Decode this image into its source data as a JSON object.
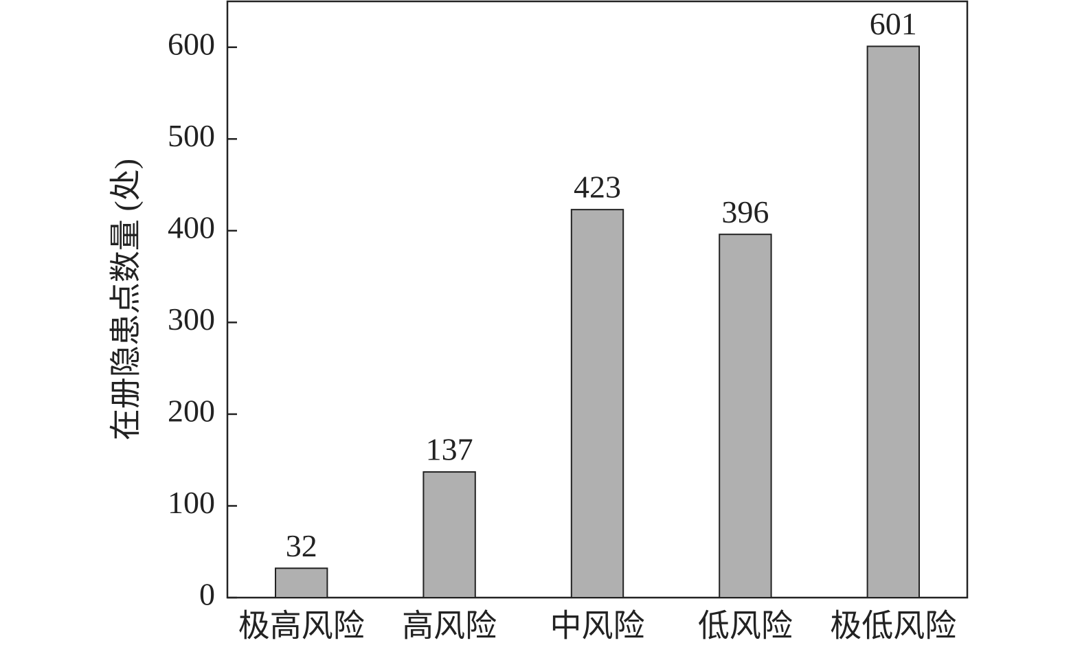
{
  "chart_data": {
    "type": "bar",
    "y_label": "在册隐患点数量 (处)",
    "categories": [
      "极高风险",
      "高风险",
      "中风险",
      "低风险",
      "极低风险"
    ],
    "values": [
      32,
      137,
      423,
      396,
      601
    ],
    "color": "#b0b0b0",
    "ylim": [
      0,
      650
    ],
    "yticks": [
      0,
      100,
      200,
      300,
      400,
      500,
      600
    ],
    "grid": false
  }
}
